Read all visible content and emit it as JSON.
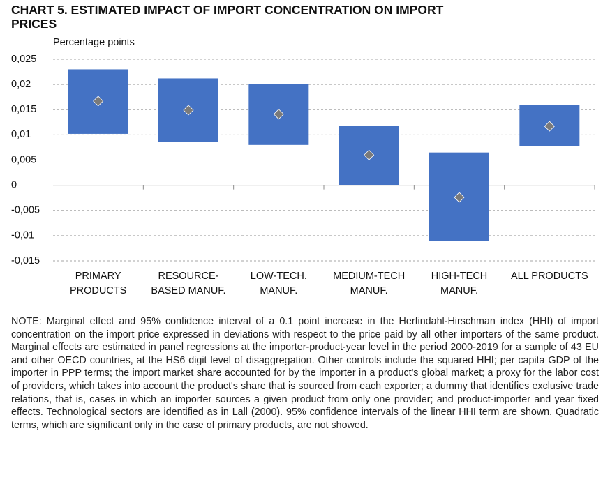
{
  "chart_data": {
    "type": "bar",
    "title": "CHART 5. ESTIMATED IMPACT OF IMPORT CONCENTRATION ON IMPORT PRICES",
    "y_label": "Percentage points",
    "categories": [
      [
        "PRIMARY",
        "PRODUCTS"
      ],
      [
        "RESOURCE-",
        "BASED MANUF."
      ],
      [
        "LOW-TECH.",
        "MANUF."
      ],
      [
        "MEDIUM-TECH",
        "MANUF."
      ],
      [
        "HIGH-TECH",
        "MANUF."
      ],
      [
        "ALL PRODUCTS"
      ]
    ],
    "values": [
      0.0167,
      0.0149,
      0.0141,
      0.006,
      -0.0024,
      0.0117
    ],
    "values_low": [
      0.0102,
      0.0086,
      0.008,
      0,
      -0.011,
      0.0078
    ],
    "values_high": [
      0.023,
      0.0212,
      0.0201,
      0.0118,
      0.0065,
      0.0159
    ],
    "color": "#4472c4",
    "marker_color": "#7a7a7a",
    "ylim": [
      -0.015,
      0.025
    ],
    "yticks": [
      {
        "value": -0.015,
        "label": "-0,015"
      },
      {
        "value": -0.01,
        "label": "-0,01"
      },
      {
        "value": -0.005,
        "label": "-0,005"
      },
      0,
      {
        "value": 0.005,
        "label": "0,005"
      },
      {
        "value": 0.01,
        "label": "0,01"
      },
      {
        "value": 0.015,
        "label": "0,015"
      },
      {
        "value": 0.02,
        "label": "0,02"
      },
      {
        "value": 0.025,
        "label": "0,025"
      }
    ],
    "grid": true
  },
  "note": "NOTE: Marginal effect and 95% confidence interval of a 0.1 point increase in the Herfindahl-Hirschman index (HHI) of import concentration on the import price expressed in deviations with respect to the price paid by all other importers of the same product. Marginal effects are estimated in panel regressions at the importer-product-year level in the period 2000-2019 for a sample of 43 EU and other OECD countries, at the HS6 digit level of disaggregation. Other controls include the squared HHI; per capita GDP of the importer in PPP terms; the import market share accounted for by the importer in a product's global market; a proxy for the labor cost of providers, which takes into account the product's share that is sourced from each exporter; a dummy that identifies exclusive trade relations, that is, cases in which an importer sources a given product from only one provider; and product-importer and year fixed effects. Technological sectors are identified as in Lall (2000). 95% confidence intervals of the linear HHI term are shown. Quadratic terms, which are significant only in the case of primary products, are not showed."
}
